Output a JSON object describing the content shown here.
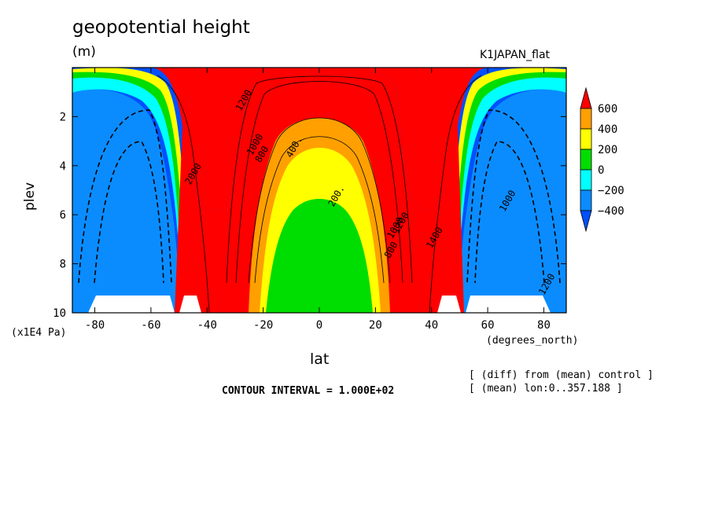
{
  "chart_data": {
    "type": "heatmap",
    "title": "geopotential height",
    "units": "(m)",
    "run_label": "K1JAPAN_flat",
    "xlabel": "lat",
    "x_unit_label": "(degrees_north)",
    "ylabel": "plev",
    "y_unit_label": "(x1E4 Pa)",
    "xlim": [
      -88,
      88
    ],
    "ylim": [
      10,
      0
    ],
    "x_ticks": [
      "-80",
      "-60",
      "-40",
      "-20",
      "0",
      "20",
      "40",
      "60",
      "80"
    ],
    "x_tick_values": [
      -80,
      -60,
      -40,
      -20,
      0,
      20,
      40,
      60,
      80
    ],
    "y_ticks": [
      "2",
      "4",
      "6",
      "8",
      "10"
    ],
    "y_tick_values": [
      2,
      4,
      6,
      8,
      10
    ],
    "contour_interval_text": "CONTOUR INTERVAL = 1.000E+02",
    "notes": [
      "[ (diff) from (mean) control ]",
      "[ (mean) lon:0..357.188 ]"
    ],
    "colorbar": {
      "labels": [
        "600",
        "400",
        "200",
        "0",
        "−200",
        "−400"
      ],
      "values": [
        600,
        400,
        200,
        0,
        -200,
        -400
      ],
      "colors": [
        "#ff0000",
        "#ffa000",
        "#ffff00",
        "#00dd00",
        "#00ffff",
        "#0a8cff",
        "#0050ff"
      ]
    },
    "contour_labels": [
      "1200",
      "1000",
      "800",
      "400.",
      "200.",
      "2000",
      "1400",
      "1200",
      "1000",
      "800",
      "1000",
      "1200"
    ]
  }
}
